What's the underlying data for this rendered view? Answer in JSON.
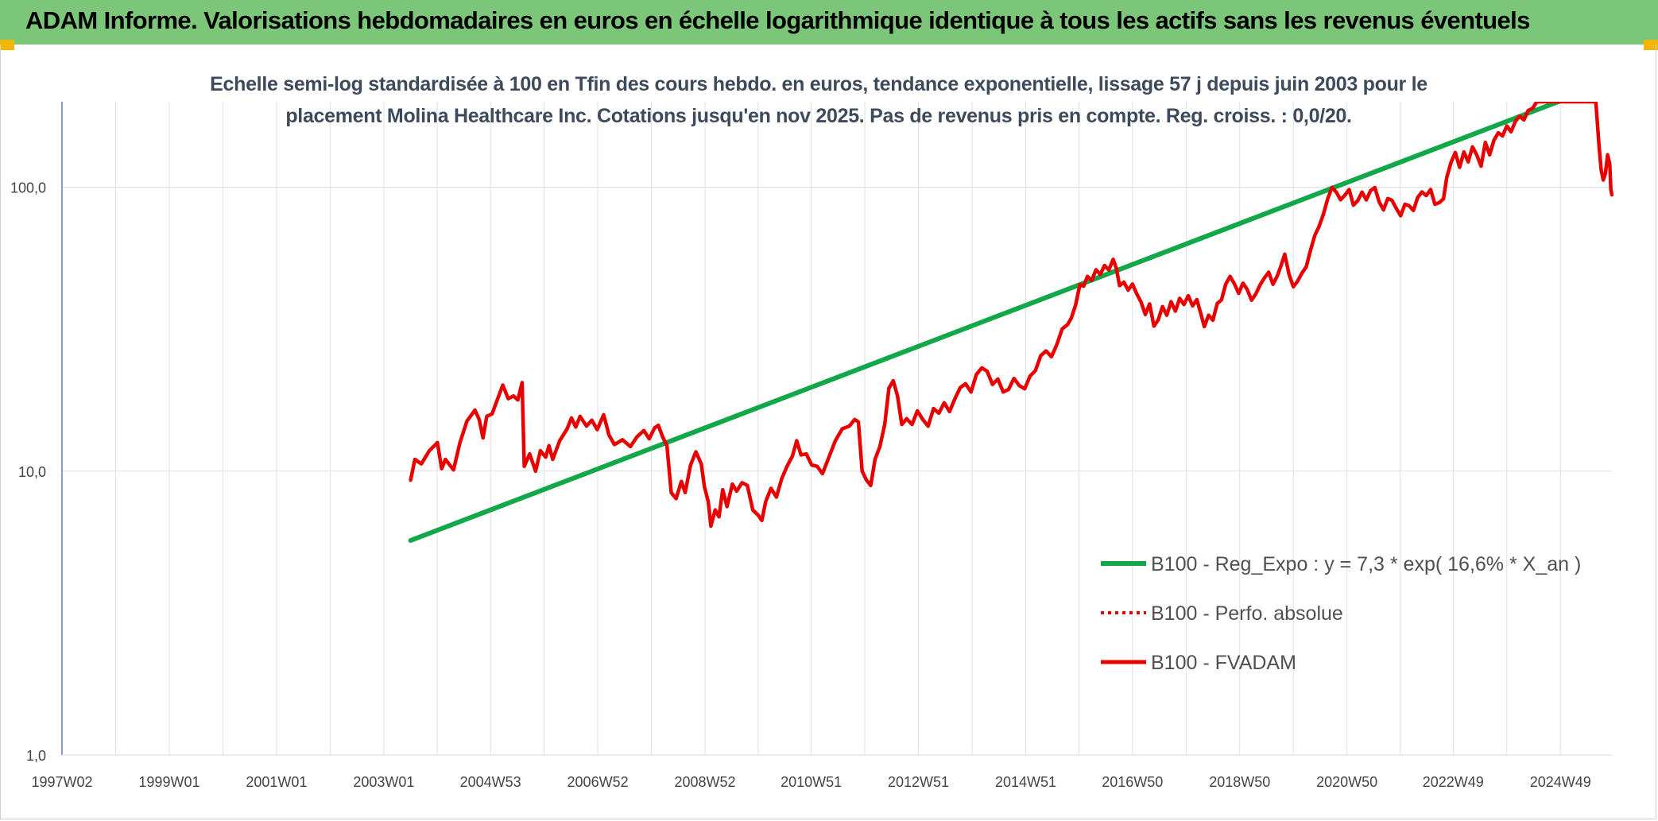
{
  "header": {
    "title": "ADAM Informe. Valorisations hebdomadaires en euros en échelle logarithmique identique à tous les actifs sans les revenus éventuels"
  },
  "colors": {
    "banner": "#7cc67a",
    "trend": "#12a84a",
    "price": "#e80000",
    "corner": "#f2b705"
  },
  "chart_data": {
    "type": "line",
    "title_line1": "Echelle semi-log standardisée à 100 en Tfin des cours hebdo. en euros, tendance exponentielle, lissage 57 j depuis juin 2003 pour le",
    "title_line2": "placement Molina Healthcare Inc. Cotations jusqu'en nov 2025. Pas de revenus pris en compte. Reg. croiss. : 0,0/20.",
    "y_scale": "log",
    "ylim": [
      1,
      200
    ],
    "xlim": [
      1997.0,
      2025.9
    ],
    "y_ticks": [
      {
        "value": 1,
        "label": "1,0"
      },
      {
        "value": 10,
        "label": "10,0"
      },
      {
        "value": 100,
        "label": "100,0"
      }
    ],
    "x_ticks": [
      {
        "value": 1997.0,
        "label": "1997W02"
      },
      {
        "value": 1999.0,
        "label": "1999W01"
      },
      {
        "value": 2001.0,
        "label": "2001W01"
      },
      {
        "value": 2003.0,
        "label": "2003W01"
      },
      {
        "value": 2004.99,
        "label": "2004W53"
      },
      {
        "value": 2006.99,
        "label": "2006W52"
      },
      {
        "value": 2008.99,
        "label": "2008W52"
      },
      {
        "value": 2010.97,
        "label": "2010W51"
      },
      {
        "value": 2012.97,
        "label": "2012W51"
      },
      {
        "value": 2014.97,
        "label": "2014W51"
      },
      {
        "value": 2016.96,
        "label": "2016W50"
      },
      {
        "value": 2018.96,
        "label": "2018W50"
      },
      {
        "value": 2020.96,
        "label": "2020W50"
      },
      {
        "value": 2022.94,
        "label": "2022W49"
      },
      {
        "value": 2024.94,
        "label": "2024W49"
      }
    ],
    "legend_position": "bottom-right",
    "series": [
      {
        "name": "B100 - Reg_Expo : y = 7,3 * exp( 16,6% *  X_an )",
        "style": "solid",
        "color": "#12a84a",
        "points": [
          [
            2003.5,
            5.7
          ],
          [
            2024.9,
            200
          ]
        ]
      },
      {
        "name": "B100 - Perfo. absolue",
        "style": "dotted",
        "color": "#e80000",
        "points": []
      },
      {
        "name": "B100 - FVADAM",
        "style": "solid",
        "color": "#e80000",
        "points": [
          [
            2003.5,
            9.3
          ],
          [
            2003.58,
            11.0
          ],
          [
            2003.7,
            10.6
          ],
          [
            2003.85,
            11.8
          ],
          [
            2004.0,
            12.6
          ],
          [
            2004.08,
            10.2
          ],
          [
            2004.15,
            11.0
          ],
          [
            2004.3,
            10.1
          ],
          [
            2004.42,
            12.6
          ],
          [
            2004.55,
            15.0
          ],
          [
            2004.7,
            16.4
          ],
          [
            2004.78,
            15.2
          ],
          [
            2004.85,
            13.1
          ],
          [
            2004.92,
            15.6
          ],
          [
            2005.02,
            15.9
          ],
          [
            2005.12,
            17.9
          ],
          [
            2005.22,
            20.1
          ],
          [
            2005.32,
            18.0
          ],
          [
            2005.42,
            18.4
          ],
          [
            2005.5,
            17.8
          ],
          [
            2005.58,
            20.5
          ],
          [
            2005.62,
            10.4
          ],
          [
            2005.72,
            11.5
          ],
          [
            2005.83,
            10.0
          ],
          [
            2005.92,
            11.8
          ],
          [
            2006.02,
            11.2
          ],
          [
            2006.08,
            12.3
          ],
          [
            2006.15,
            11.0
          ],
          [
            2006.28,
            12.8
          ],
          [
            2006.42,
            14.1
          ],
          [
            2006.5,
            15.4
          ],
          [
            2006.58,
            14.3
          ],
          [
            2006.66,
            15.6
          ],
          [
            2006.78,
            14.4
          ],
          [
            2006.88,
            15.1
          ],
          [
            2006.98,
            14.0
          ],
          [
            2007.1,
            15.8
          ],
          [
            2007.2,
            13.4
          ],
          [
            2007.3,
            12.4
          ],
          [
            2007.45,
            12.9
          ],
          [
            2007.6,
            12.2
          ],
          [
            2007.72,
            13.2
          ],
          [
            2007.85,
            13.9
          ],
          [
            2007.95,
            13.0
          ],
          [
            2008.05,
            14.2
          ],
          [
            2008.12,
            14.5
          ],
          [
            2008.2,
            13.2
          ],
          [
            2008.28,
            12.3
          ],
          [
            2008.36,
            8.4
          ],
          [
            2008.45,
            8.0
          ],
          [
            2008.55,
            9.2
          ],
          [
            2008.62,
            8.4
          ],
          [
            2008.72,
            10.5
          ],
          [
            2008.82,
            11.7
          ],
          [
            2008.92,
            10.6
          ],
          [
            2008.98,
            8.8
          ],
          [
            2009.05,
            7.8
          ],
          [
            2009.1,
            6.4
          ],
          [
            2009.18,
            7.3
          ],
          [
            2009.25,
            6.9
          ],
          [
            2009.32,
            8.6
          ],
          [
            2009.4,
            7.5
          ],
          [
            2009.5,
            9.0
          ],
          [
            2009.58,
            8.5
          ],
          [
            2009.68,
            9.1
          ],
          [
            2009.78,
            8.9
          ],
          [
            2009.88,
            7.3
          ],
          [
            2009.98,
            7.0
          ],
          [
            2010.05,
            6.7
          ],
          [
            2010.12,
            7.8
          ],
          [
            2010.22,
            8.7
          ],
          [
            2010.32,
            8.1
          ],
          [
            2010.42,
            9.4
          ],
          [
            2010.52,
            10.4
          ],
          [
            2010.62,
            11.3
          ],
          [
            2010.7,
            12.8
          ],
          [
            2010.78,
            11.4
          ],
          [
            2010.88,
            11.5
          ],
          [
            2010.98,
            10.5
          ],
          [
            2011.08,
            10.4
          ],
          [
            2011.18,
            9.8
          ],
          [
            2011.3,
            11.2
          ],
          [
            2011.42,
            12.8
          ],
          [
            2011.55,
            14.1
          ],
          [
            2011.68,
            14.4
          ],
          [
            2011.78,
            15.2
          ],
          [
            2011.85,
            14.9
          ],
          [
            2011.92,
            10.0
          ],
          [
            2012.0,
            9.3
          ],
          [
            2012.08,
            8.9
          ],
          [
            2012.16,
            11.0
          ],
          [
            2012.25,
            12.2
          ],
          [
            2012.34,
            14.6
          ],
          [
            2012.42,
            19.6
          ],
          [
            2012.5,
            20.8
          ],
          [
            2012.58,
            18.4
          ],
          [
            2012.66,
            14.6
          ],
          [
            2012.75,
            15.3
          ],
          [
            2012.85,
            14.6
          ],
          [
            2012.95,
            16.3
          ],
          [
            2013.05,
            15.2
          ],
          [
            2013.15,
            14.4
          ],
          [
            2013.25,
            16.6
          ],
          [
            2013.35,
            16.0
          ],
          [
            2013.45,
            17.4
          ],
          [
            2013.55,
            16.2
          ],
          [
            2013.65,
            18.0
          ],
          [
            2013.75,
            19.7
          ],
          [
            2013.85,
            20.3
          ],
          [
            2013.95,
            19.0
          ],
          [
            2014.05,
            21.9
          ],
          [
            2014.15,
            23.1
          ],
          [
            2014.25,
            22.5
          ],
          [
            2014.35,
            20.2
          ],
          [
            2014.45,
            21.1
          ],
          [
            2014.55,
            19.0
          ],
          [
            2014.65,
            19.4
          ],
          [
            2014.75,
            21.2
          ],
          [
            2014.85,
            20.0
          ],
          [
            2014.95,
            19.5
          ],
          [
            2015.05,
            21.6
          ],
          [
            2015.15,
            22.6
          ],
          [
            2015.25,
            25.5
          ],
          [
            2015.35,
            26.5
          ],
          [
            2015.45,
            25.3
          ],
          [
            2015.55,
            27.9
          ],
          [
            2015.65,
            31.7
          ],
          [
            2015.75,
            32.8
          ],
          [
            2015.82,
            34.6
          ],
          [
            2015.9,
            38.5
          ],
          [
            2015.98,
            45.4
          ],
          [
            2016.05,
            44.8
          ],
          [
            2016.12,
            48.5
          ],
          [
            2016.2,
            46.9
          ],
          [
            2016.28,
            51.2
          ],
          [
            2016.36,
            49.3
          ],
          [
            2016.44,
            53.0
          ],
          [
            2016.52,
            51.1
          ],
          [
            2016.6,
            55.7
          ],
          [
            2016.66,
            51.8
          ],
          [
            2016.72,
            45.0
          ],
          [
            2016.8,
            46.3
          ],
          [
            2016.88,
            43.4
          ],
          [
            2016.96,
            45.6
          ],
          [
            2017.04,
            42.1
          ],
          [
            2017.12,
            39.4
          ],
          [
            2017.2,
            35.6
          ],
          [
            2017.28,
            38.8
          ],
          [
            2017.36,
            32.4
          ],
          [
            2017.44,
            34.1
          ],
          [
            2017.52,
            38.0
          ],
          [
            2017.6,
            35.4
          ],
          [
            2017.68,
            39.5
          ],
          [
            2017.76,
            36.6
          ],
          [
            2017.84,
            40.6
          ],
          [
            2017.92,
            38.6
          ],
          [
            2018.0,
            41.5
          ],
          [
            2018.08,
            38.2
          ],
          [
            2018.16,
            40.2
          ],
          [
            2018.24,
            35.6
          ],
          [
            2018.3,
            32.3
          ],
          [
            2018.38,
            35.4
          ],
          [
            2018.46,
            34.0
          ],
          [
            2018.54,
            38.9
          ],
          [
            2018.62,
            40.1
          ],
          [
            2018.7,
            45.6
          ],
          [
            2018.78,
            48.5
          ],
          [
            2018.86,
            45.7
          ],
          [
            2018.94,
            42.3
          ],
          [
            2019.02,
            45.9
          ],
          [
            2019.1,
            43.6
          ],
          [
            2019.18,
            40.0
          ],
          [
            2019.26,
            42.1
          ],
          [
            2019.34,
            45.3
          ],
          [
            2019.42,
            47.9
          ],
          [
            2019.5,
            50.2
          ],
          [
            2019.58,
            45.5
          ],
          [
            2019.66,
            48.7
          ],
          [
            2019.72,
            52.2
          ],
          [
            2019.8,
            58.1
          ],
          [
            2019.88,
            49.3
          ],
          [
            2019.96,
            44.6
          ],
          [
            2020.04,
            46.7
          ],
          [
            2020.12,
            49.8
          ],
          [
            2020.2,
            52.4
          ],
          [
            2020.28,
            59.9
          ],
          [
            2020.36,
            67.6
          ],
          [
            2020.44,
            72.8
          ],
          [
            2020.52,
            80.3
          ],
          [
            2020.6,
            91.0
          ],
          [
            2020.68,
            99.8
          ],
          [
            2020.76,
            96.1
          ],
          [
            2020.84,
            90.3
          ],
          [
            2020.92,
            93.7
          ],
          [
            2021.0,
            98.1
          ],
          [
            2021.08,
            86.4
          ],
          [
            2021.16,
            89.6
          ],
          [
            2021.24,
            96.1
          ],
          [
            2021.32,
            90.2
          ],
          [
            2021.4,
            97.3
          ],
          [
            2021.48,
            99.7
          ],
          [
            2021.56,
            88.7
          ],
          [
            2021.64,
            83.2
          ],
          [
            2021.72,
            91.2
          ],
          [
            2021.8,
            89.8
          ],
          [
            2021.88,
            84.1
          ],
          [
            2021.96,
            79.3
          ],
          [
            2022.04,
            87.1
          ],
          [
            2022.12,
            86.0
          ],
          [
            2022.2,
            82.8
          ],
          [
            2022.28,
            92.1
          ],
          [
            2022.36,
            96.2
          ],
          [
            2022.44,
            93.4
          ],
          [
            2022.52,
            98.2
          ],
          [
            2022.6,
            87.1
          ],
          [
            2022.68,
            88.2
          ],
          [
            2022.76,
            91.0
          ],
          [
            2022.82,
            108.1
          ],
          [
            2022.9,
            122.3
          ],
          [
            2022.98,
            132.5
          ],
          [
            2023.06,
            117.5
          ],
          [
            2023.14,
            133.1
          ],
          [
            2023.22,
            122.8
          ],
          [
            2023.3,
            138.7
          ],
          [
            2023.38,
            129.9
          ],
          [
            2023.46,
            118.6
          ],
          [
            2023.54,
            143.8
          ],
          [
            2023.62,
            130.1
          ],
          [
            2023.7,
            146.3
          ],
          [
            2023.78,
            155.4
          ],
          [
            2023.86,
            151.6
          ],
          [
            2023.94,
            164.3
          ],
          [
            2024.02,
            156.8
          ],
          [
            2024.1,
            170.3
          ],
          [
            2024.18,
            178.0
          ],
          [
            2024.26,
            172.6
          ],
          [
            2024.34,
            186.4
          ],
          [
            2024.42,
            189.3
          ],
          [
            2024.5,
            200.0
          ],
          [
            2024.7,
            200.0
          ],
          [
            2024.9,
            200.0
          ],
          [
            2025.1,
            200.0
          ],
          [
            2025.3,
            200.0
          ],
          [
            2025.5,
            200.0
          ],
          [
            2025.6,
            200.0
          ],
          [
            2025.62,
            178.0
          ],
          [
            2025.66,
            140.0
          ],
          [
            2025.7,
            115.0
          ],
          [
            2025.74,
            106.0
          ],
          [
            2025.78,
            112.0
          ],
          [
            2025.82,
            130.0
          ],
          [
            2025.86,
            121.0
          ],
          [
            2025.88,
            98.0
          ],
          [
            2025.9,
            94.0
          ]
        ]
      }
    ]
  }
}
